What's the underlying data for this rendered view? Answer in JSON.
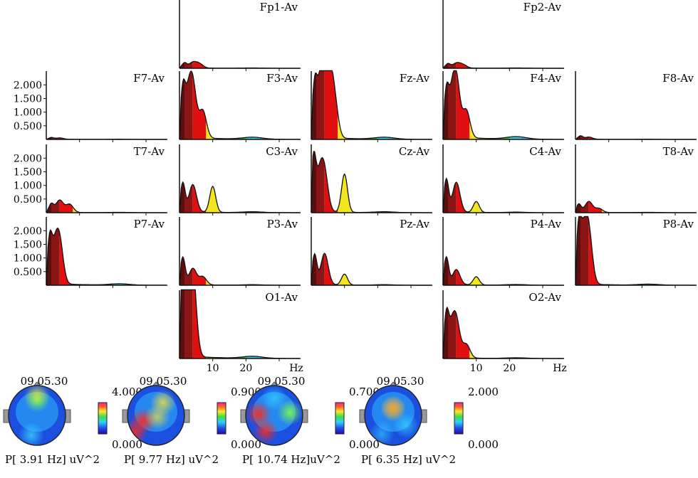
{
  "chart_data": {
    "type": "area",
    "x_unit": "Hz",
    "x_ticks": [
      "10",
      "20",
      "Hz"
    ],
    "xlim": [
      0,
      36
    ],
    "y_ticks": [
      "2.000",
      "1.500",
      "1.000",
      "0.500"
    ],
    "ylim": [
      0,
      2.4
    ],
    "band_colors": {
      "delta_low": "#5c0d0d",
      "delta": "#8b1515",
      "theta": "#e01010",
      "alpha": "#f2e620",
      "beta1": "#2fbf2f",
      "beta2": "#37c9e8",
      "gamma": "#2a3fb8"
    },
    "band_edges_hz": [
      1.5,
      4,
      8,
      13,
      20,
      30
    ],
    "channels": [
      {
        "label": "Fp1-Av",
        "peaks": [
          [
            1.5,
            0.18
          ],
          [
            4,
            0.2
          ],
          [
            6,
            0.15
          ]
        ],
        "floor": 0.02
      },
      {
        "label": "Fp2-Av",
        "peaks": [
          [
            1.5,
            0.15
          ],
          [
            4,
            0.17
          ],
          [
            6,
            0.12
          ]
        ],
        "floor": 0.02
      },
      {
        "label": "F7-Av",
        "peaks": [
          [
            1.5,
            0.06
          ],
          [
            4,
            0.05
          ]
        ],
        "floor": 0.01
      },
      {
        "label": "F3-Av",
        "peaks": [
          [
            1,
            1.5
          ],
          [
            2.5,
            1.2
          ],
          [
            4,
            1.8
          ],
          [
            7,
            1.0
          ]
        ],
        "floor": 0.12
      },
      {
        "label": "Fz-Av",
        "peaks": [
          [
            1,
            1.6
          ],
          [
            2.5,
            1.4
          ],
          [
            4,
            2.1
          ],
          [
            5.5,
            1.7
          ],
          [
            7,
            1.2
          ]
        ],
        "floor": 0.12
      },
      {
        "label": "F4-Av",
        "peaks": [
          [
            1,
            1.4
          ],
          [
            2.5,
            1.1
          ],
          [
            4,
            2.0
          ],
          [
            7,
            1.0
          ]
        ],
        "floor": 0.15
      },
      {
        "label": "F8-Av",
        "peaks": [
          [
            1.5,
            0.12
          ],
          [
            4,
            0.08
          ]
        ],
        "floor": 0.01
      },
      {
        "label": "T7-Av",
        "peaks": [
          [
            1.5,
            0.3
          ],
          [
            4,
            0.45
          ],
          [
            7,
            0.3
          ]
        ],
        "floor": 0.02
      },
      {
        "label": "C3-Av",
        "peaks": [
          [
            1,
            1.05
          ],
          [
            4,
            1.0
          ],
          [
            10,
            0.95
          ]
        ],
        "floor": 0.05
      },
      {
        "label": "Cz-Av",
        "peaks": [
          [
            0.7,
            1.85
          ],
          [
            2.5,
            1.2
          ],
          [
            4,
            1.3
          ],
          [
            10,
            1.4
          ]
        ],
        "floor": 0.05
      },
      {
        "label": "C4-Av",
        "peaks": [
          [
            1,
            1.2
          ],
          [
            4,
            1.1
          ],
          [
            10,
            0.4
          ]
        ],
        "floor": 0.03
      },
      {
        "label": "T8-Av",
        "peaks": [
          [
            1,
            0.3
          ],
          [
            4,
            0.4
          ],
          [
            7,
            0.15
          ]
        ],
        "floor": 0.02
      },
      {
        "label": "P7-Av",
        "peaks": [
          [
            1,
            1.4
          ],
          [
            2.5,
            1.1
          ],
          [
            4,
            1.45
          ]
        ],
        "floor": 0.08
      },
      {
        "label": "P3-Av",
        "peaks": [
          [
            1,
            1.0
          ],
          [
            4,
            0.6
          ],
          [
            7,
            0.3
          ]
        ],
        "floor": 0.03
      },
      {
        "label": "Pz-Av",
        "peaks": [
          [
            1,
            1.1
          ],
          [
            4,
            1.15
          ],
          [
            10,
            0.4
          ]
        ],
        "floor": 0.03
      },
      {
        "label": "P4-Av",
        "peaks": [
          [
            1,
            1.0
          ],
          [
            4,
            0.55
          ],
          [
            10,
            0.3
          ]
        ],
        "floor": 0.04
      },
      {
        "label": "P8-Av",
        "peaks": [
          [
            1,
            1.85
          ],
          [
            2.5,
            1.6
          ],
          [
            4,
            1.7
          ]
        ],
        "floor": 0.06
      },
      {
        "label": "O1-Av",
        "peaks": [
          [
            1,
            2.6
          ],
          [
            2.5,
            2.8
          ],
          [
            4,
            2.7
          ]
        ],
        "floor": 0.12
      },
      {
        "label": "O2-Av",
        "peaks": [
          [
            1,
            1.4
          ],
          [
            2.5,
            0.9
          ],
          [
            4,
            1.25
          ],
          [
            7,
            0.5
          ]
        ],
        "floor": 0.04
      }
    ],
    "maps": [
      {
        "time": "09.05.30",
        "max": "4.000",
        "min": "0.000",
        "caption": "P[  3.91 Hz] uV^2"
      },
      {
        "time": "09.05.30",
        "max": "0.900",
        "min": "0.000",
        "caption": "P[  9.77 Hz] uV^2"
      },
      {
        "time": "09.05.30",
        "max": "0.700",
        "min": "0.000",
        "caption": "P[ 10.74 Hz]uV^2"
      },
      {
        "time": "09.05.30",
        "max": "2.000",
        "min": "0.000",
        "caption": "P[  6.35 Hz] uV^2"
      }
    ]
  }
}
